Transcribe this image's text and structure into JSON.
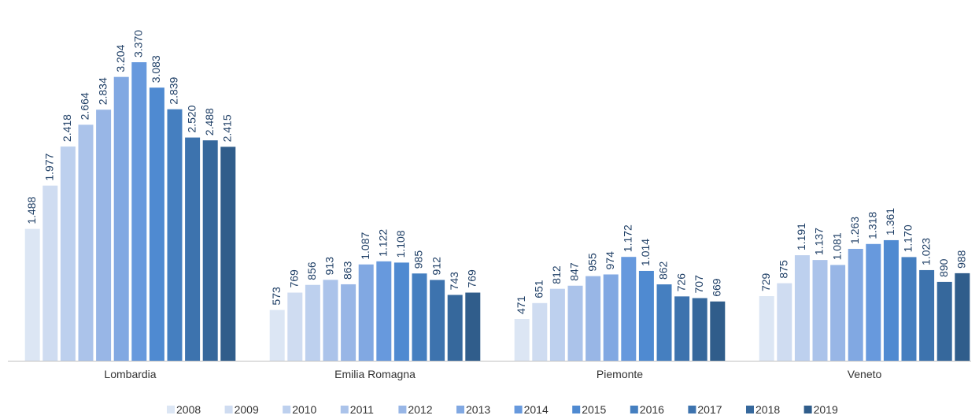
{
  "chart_data": {
    "type": "bar",
    "categories": [
      "Lombardia",
      "Emilia Romagna",
      "Piemonte",
      "Veneto"
    ],
    "series": [
      {
        "name": "2008",
        "color": "#dce6f4",
        "values": [
          1488,
          573,
          471,
          729
        ],
        "value_labels": [
          "1.488",
          "573",
          "471",
          "729"
        ]
      },
      {
        "name": "2009",
        "color": "#cfdcf1",
        "values": [
          1977,
          769,
          651,
          875
        ],
        "value_labels": [
          "1.977",
          "769",
          "651",
          "875"
        ]
      },
      {
        "name": "2010",
        "color": "#bdd0ee",
        "values": [
          2418,
          856,
          812,
          1191
        ],
        "value_labels": [
          "2.418",
          "856",
          "812",
          "1.191"
        ]
      },
      {
        "name": "2011",
        "color": "#abc3ea",
        "values": [
          2664,
          913,
          847,
          1137
        ],
        "value_labels": [
          "2.664",
          "913",
          "847",
          "1.137"
        ]
      },
      {
        "name": "2012",
        "color": "#98b6e6",
        "values": [
          2834,
          863,
          955,
          1081
        ],
        "value_labels": [
          "2.834",
          "863",
          "955",
          "1.081"
        ]
      },
      {
        "name": "2013",
        "color": "#81a8e2",
        "values": [
          3204,
          1087,
          974,
          1263
        ],
        "value_labels": [
          "3.204",
          "1.087",
          "974",
          "1.263"
        ]
      },
      {
        "name": "2014",
        "color": "#6799dd",
        "values": [
          3370,
          1122,
          1172,
          1318
        ],
        "value_labels": [
          "3.370",
          "1.122",
          "1.172",
          "1.318"
        ]
      },
      {
        "name": "2015",
        "color": "#4f8ad1",
        "values": [
          3083,
          1108,
          1014,
          1361
        ],
        "value_labels": [
          "3.083",
          "1.108",
          "1.014",
          "1.361"
        ]
      },
      {
        "name": "2016",
        "color": "#457fc0",
        "values": [
          2839,
          985,
          862,
          1170
        ],
        "value_labels": [
          "2.839",
          "985",
          "862",
          "1.170"
        ]
      },
      {
        "name": "2017",
        "color": "#3d73ae",
        "values": [
          2520,
          912,
          726,
          1023
        ],
        "value_labels": [
          "2.520",
          "912",
          "726",
          "1.023"
        ]
      },
      {
        "name": "2018",
        "color": "#36689c",
        "values": [
          2488,
          743,
          707,
          890
        ],
        "value_labels": [
          "2.488",
          "743",
          "707",
          "890"
        ]
      },
      {
        "name": "2019",
        "color": "#305d8b",
        "values": [
          2415,
          769,
          669,
          988
        ],
        "value_labels": [
          "2.415",
          "769",
          "669",
          "988"
        ]
      }
    ]
  }
}
